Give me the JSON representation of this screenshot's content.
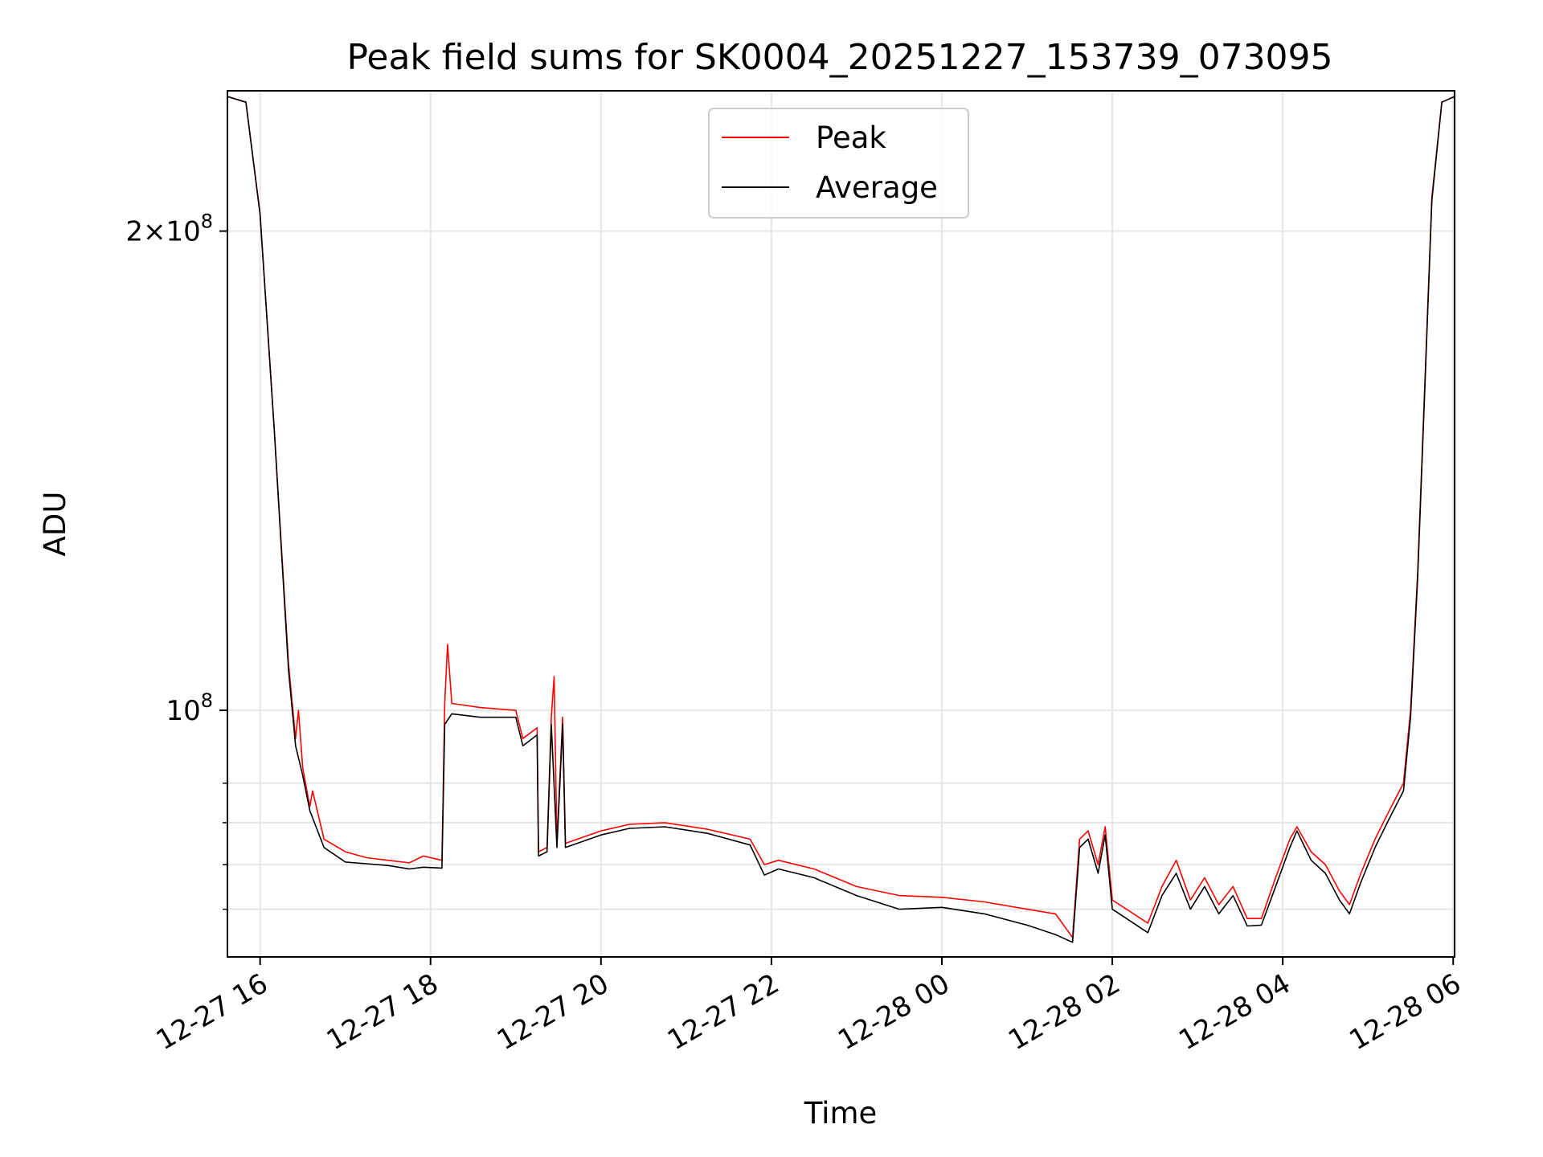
{
  "chart_data": {
    "type": "line",
    "title": "Peak field sums for SK0004_20251227_153739_073095",
    "xlabel": "Time",
    "ylabel": "ADU",
    "yscale": "log",
    "xlim": [
      "2025-12-27 15:37",
      "2025-12-28 06:01"
    ],
    "ylim": [
      70000000,
      245000000
    ],
    "grid": true,
    "legend_position": "top-center",
    "x_ticks": [
      {
        "t": "2025-12-27 16:00",
        "label": "12-27 16"
      },
      {
        "t": "2025-12-27 18:00",
        "label": "12-27 18"
      },
      {
        "t": "2025-12-27 20:00",
        "label": "12-27 20"
      },
      {
        "t": "2025-12-27 22:00",
        "label": "12-27 22"
      },
      {
        "t": "2025-12-28 00:00",
        "label": "12-28 00"
      },
      {
        "t": "2025-12-28 02:00",
        "label": "12-28 02"
      },
      {
        "t": "2025-12-28 04:00",
        "label": "12-28 04"
      },
      {
        "t": "2025-12-28 06:00",
        "label": "12-28 06"
      }
    ],
    "y_ticks_major": [
      {
        "v": 100000000,
        "base": "10",
        "exp": "8",
        "coef": ""
      },
      {
        "v": 200000000,
        "base": "10",
        "exp": "8",
        "coef": "2"
      }
    ],
    "y_ticks_minor": [
      75000000,
      80000000,
      85000000,
      90000000
    ],
    "series": [
      {
        "name": "Peak",
        "color": "#ff0000",
        "points": [
          [
            "2025-12-27 15:37",
            243000000
          ],
          [
            "2025-12-27 15:50",
            241000000
          ],
          [
            "2025-12-27 16:00",
            205000000
          ],
          [
            "2025-12-27 16:10",
            150000000
          ],
          [
            "2025-12-27 16:20",
            107000000
          ],
          [
            "2025-12-27 16:25",
            96000000
          ],
          [
            "2025-12-27 16:27",
            100000000
          ],
          [
            "2025-12-27 16:30",
            92000000
          ],
          [
            "2025-12-27 16:35",
            87000000
          ],
          [
            "2025-12-27 16:37",
            89000000
          ],
          [
            "2025-12-27 16:45",
            83000000
          ],
          [
            "2025-12-27 17:00",
            81500000
          ],
          [
            "2025-12-27 17:15",
            80800000
          ],
          [
            "2025-12-27 17:30",
            80500000
          ],
          [
            "2025-12-27 17:45",
            80200000
          ],
          [
            "2025-12-27 17:55",
            81000000
          ],
          [
            "2025-12-27 18:08",
            80500000
          ],
          [
            "2025-12-27 18:10",
            101000000
          ],
          [
            "2025-12-27 18:12",
            110000000
          ],
          [
            "2025-12-27 18:15",
            101000000
          ],
          [
            "2025-12-27 18:35",
            100400000
          ],
          [
            "2025-12-27 19:00",
            100000000
          ],
          [
            "2025-12-27 19:05",
            96000000
          ],
          [
            "2025-12-27 19:15",
            97500000
          ],
          [
            "2025-12-27 19:16",
            81500000
          ],
          [
            "2025-12-27 19:22",
            82000000
          ],
          [
            "2025-12-27 19:25",
            99000000
          ],
          [
            "2025-12-27 19:27",
            105000000
          ],
          [
            "2025-12-27 19:29",
            82500000
          ],
          [
            "2025-12-27 19:33",
            99000000
          ],
          [
            "2025-12-27 19:35",
            82500000
          ],
          [
            "2025-12-27 20:00",
            84000000
          ],
          [
            "2025-12-27 20:20",
            84800000
          ],
          [
            "2025-12-27 20:45",
            85000000
          ],
          [
            "2025-12-27 21:15",
            84200000
          ],
          [
            "2025-12-27 21:45",
            83000000
          ],
          [
            "2025-12-27 21:55",
            80000000
          ],
          [
            "2025-12-27 22:05",
            80500000
          ],
          [
            "2025-12-27 22:30",
            79500000
          ],
          [
            "2025-12-27 23:00",
            77500000
          ],
          [
            "2025-12-27 23:30",
            76500000
          ],
          [
            "2025-12-28 00:00",
            76300000
          ],
          [
            "2025-12-28 00:30",
            75800000
          ],
          [
            "2025-12-28 01:00",
            75000000
          ],
          [
            "2025-12-28 01:20",
            74500000
          ],
          [
            "2025-12-28 01:32",
            72000000
          ],
          [
            "2025-12-28 01:37",
            83000000
          ],
          [
            "2025-12-28 01:43",
            84000000
          ],
          [
            "2025-12-28 01:50",
            80000000
          ],
          [
            "2025-12-28 01:55",
            84500000
          ],
          [
            "2025-12-28 02:00",
            76000000
          ],
          [
            "2025-12-28 02:10",
            75000000
          ],
          [
            "2025-12-28 02:25",
            73500000
          ],
          [
            "2025-12-28 02:35",
            77500000
          ],
          [
            "2025-12-28 02:45",
            80500000
          ],
          [
            "2025-12-28 02:55",
            76000000
          ],
          [
            "2025-12-28 03:05",
            78500000
          ],
          [
            "2025-12-28 03:15",
            75500000
          ],
          [
            "2025-12-28 03:25",
            77500000
          ],
          [
            "2025-12-28 03:35",
            74000000
          ],
          [
            "2025-12-28 03:45",
            74000000
          ],
          [
            "2025-12-28 03:55",
            78500000
          ],
          [
            "2025-12-28 04:05",
            83000000
          ],
          [
            "2025-12-28 04:10",
            84500000
          ],
          [
            "2025-12-28 04:20",
            81500000
          ],
          [
            "2025-12-28 04:30",
            80000000
          ],
          [
            "2025-12-28 04:40",
            77000000
          ],
          [
            "2025-12-28 04:47",
            75500000
          ],
          [
            "2025-12-28 04:55",
            79000000
          ],
          [
            "2025-12-28 05:05",
            83000000
          ],
          [
            "2025-12-28 05:15",
            86500000
          ],
          [
            "2025-12-28 05:25",
            90000000
          ],
          [
            "2025-12-28 05:30",
            100000000
          ],
          [
            "2025-12-28 05:35",
            122000000
          ],
          [
            "2025-12-28 05:40",
            160000000
          ],
          [
            "2025-12-28 05:45",
            210000000
          ],
          [
            "2025-12-28 05:52",
            241000000
          ],
          [
            "2025-12-28 06:01",
            243000000
          ]
        ]
      },
      {
        "name": "Average",
        "color": "#000000",
        "points": [
          [
            "2025-12-27 15:37",
            243000000
          ],
          [
            "2025-12-27 15:50",
            241000000
          ],
          [
            "2025-12-27 16:00",
            205000000
          ],
          [
            "2025-12-27 16:10",
            150000000
          ],
          [
            "2025-12-27 16:20",
            106000000
          ],
          [
            "2025-12-27 16:25",
            95000000
          ],
          [
            "2025-12-27 16:30",
            91000000
          ],
          [
            "2025-12-27 16:35",
            86500000
          ],
          [
            "2025-12-27 16:45",
            82000000
          ],
          [
            "2025-12-27 17:00",
            80300000
          ],
          [
            "2025-12-27 17:15",
            80100000
          ],
          [
            "2025-12-27 17:30",
            79900000
          ],
          [
            "2025-12-27 17:45",
            79500000
          ],
          [
            "2025-12-27 17:55",
            79700000
          ],
          [
            "2025-12-27 18:08",
            79600000
          ],
          [
            "2025-12-27 18:10",
            98000000
          ],
          [
            "2025-12-27 18:15",
            99500000
          ],
          [
            "2025-12-27 18:35",
            99000000
          ],
          [
            "2025-12-27 19:00",
            99000000
          ],
          [
            "2025-12-27 19:05",
            95000000
          ],
          [
            "2025-12-27 19:15",
            96500000
          ],
          [
            "2025-12-27 19:16",
            81000000
          ],
          [
            "2025-12-27 19:22",
            81500000
          ],
          [
            "2025-12-27 19:25",
            98000000
          ],
          [
            "2025-12-27 19:29",
            82000000
          ],
          [
            "2025-12-27 19:33",
            98000000
          ],
          [
            "2025-12-27 19:35",
            82000000
          ],
          [
            "2025-12-27 20:00",
            83500000
          ],
          [
            "2025-12-27 20:20",
            84300000
          ],
          [
            "2025-12-27 20:45",
            84500000
          ],
          [
            "2025-12-27 21:15",
            83700000
          ],
          [
            "2025-12-27 21:45",
            82300000
          ],
          [
            "2025-12-27 21:55",
            78800000
          ],
          [
            "2025-12-27 22:05",
            79500000
          ],
          [
            "2025-12-27 22:30",
            78500000
          ],
          [
            "2025-12-27 23:00",
            76500000
          ],
          [
            "2025-12-27 23:30",
            75000000
          ],
          [
            "2025-12-28 00:00",
            75200000
          ],
          [
            "2025-12-28 00:30",
            74500000
          ],
          [
            "2025-12-28 01:00",
            73300000
          ],
          [
            "2025-12-28 01:20",
            72300000
          ],
          [
            "2025-12-28 01:32",
            71500000
          ],
          [
            "2025-12-28 01:37",
            82000000
          ],
          [
            "2025-12-28 01:43",
            83000000
          ],
          [
            "2025-12-28 01:50",
            79000000
          ],
          [
            "2025-12-28 01:55",
            83500000
          ],
          [
            "2025-12-28 02:00",
            75000000
          ],
          [
            "2025-12-28 02:10",
            74000000
          ],
          [
            "2025-12-28 02:25",
            72500000
          ],
          [
            "2025-12-28 02:35",
            76500000
          ],
          [
            "2025-12-28 02:45",
            79000000
          ],
          [
            "2025-12-28 02:55",
            75000000
          ],
          [
            "2025-12-28 03:05",
            77500000
          ],
          [
            "2025-12-28 03:15",
            74500000
          ],
          [
            "2025-12-28 03:25",
            76500000
          ],
          [
            "2025-12-28 03:35",
            73200000
          ],
          [
            "2025-12-28 03:45",
            73300000
          ],
          [
            "2025-12-28 03:55",
            77500000
          ],
          [
            "2025-12-28 04:05",
            82000000
          ],
          [
            "2025-12-28 04:10",
            84000000
          ],
          [
            "2025-12-28 04:20",
            80500000
          ],
          [
            "2025-12-28 04:30",
            79000000
          ],
          [
            "2025-12-28 04:40",
            76000000
          ],
          [
            "2025-12-28 04:47",
            74500000
          ],
          [
            "2025-12-28 04:55",
            78000000
          ],
          [
            "2025-12-28 05:05",
            82000000
          ],
          [
            "2025-12-28 05:15",
            85500000
          ],
          [
            "2025-12-28 05:25",
            89000000
          ],
          [
            "2025-12-28 05:30",
            99000000
          ],
          [
            "2025-12-28 05:35",
            121000000
          ],
          [
            "2025-12-28 05:40",
            159000000
          ],
          [
            "2025-12-28 05:45",
            209000000
          ],
          [
            "2025-12-28 05:52",
            241000000
          ],
          [
            "2025-12-28 06:01",
            243000000
          ]
        ]
      }
    ]
  }
}
